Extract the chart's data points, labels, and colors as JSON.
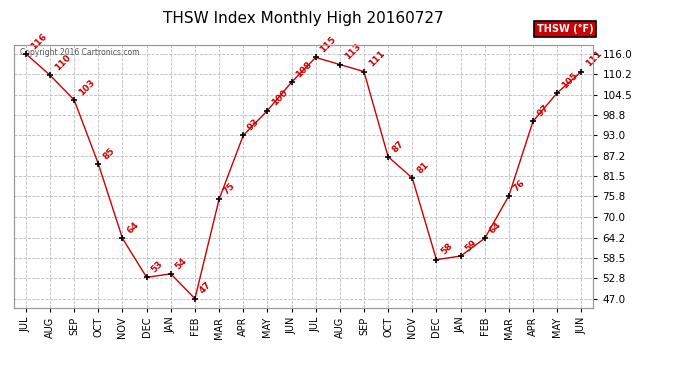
{
  "title": "THSW Index Monthly High 20160727",
  "copyright": "Copyright 2016 Cartronics.com",
  "legend_label": "THSW (°F)",
  "x_labels": [
    "JUL",
    "AUG",
    "SEP",
    "OCT",
    "NOV",
    "DEC",
    "JAN",
    "FEB",
    "MAR",
    "APR",
    "MAY",
    "JUN",
    "JUL",
    "AUG",
    "SEP",
    "OCT",
    "NOV",
    "DEC",
    "JAN",
    "FEB",
    "MAR",
    "APR",
    "MAY",
    "JUN"
  ],
  "y_values": [
    116,
    110,
    103,
    85,
    64,
    53,
    54,
    47,
    75,
    93,
    100,
    108,
    115,
    113,
    111,
    87,
    81,
    58,
    59,
    64,
    76,
    97,
    105,
    111
  ],
  "y_ticks": [
    47.0,
    52.8,
    58.5,
    64.2,
    70.0,
    75.8,
    81.5,
    87.2,
    93.0,
    98.8,
    104.5,
    110.2,
    116.0
  ],
  "ylim": [
    44.5,
    118.5
  ],
  "line_color": "#cc0000",
  "marker_color": "#000000",
  "background_color": "#ffffff",
  "grid_color": "#bbbbbb",
  "title_fontsize": 11,
  "annotation_fontsize": 6.5,
  "legend_bg": "#cc0000",
  "legend_text_color": "#ffffff"
}
